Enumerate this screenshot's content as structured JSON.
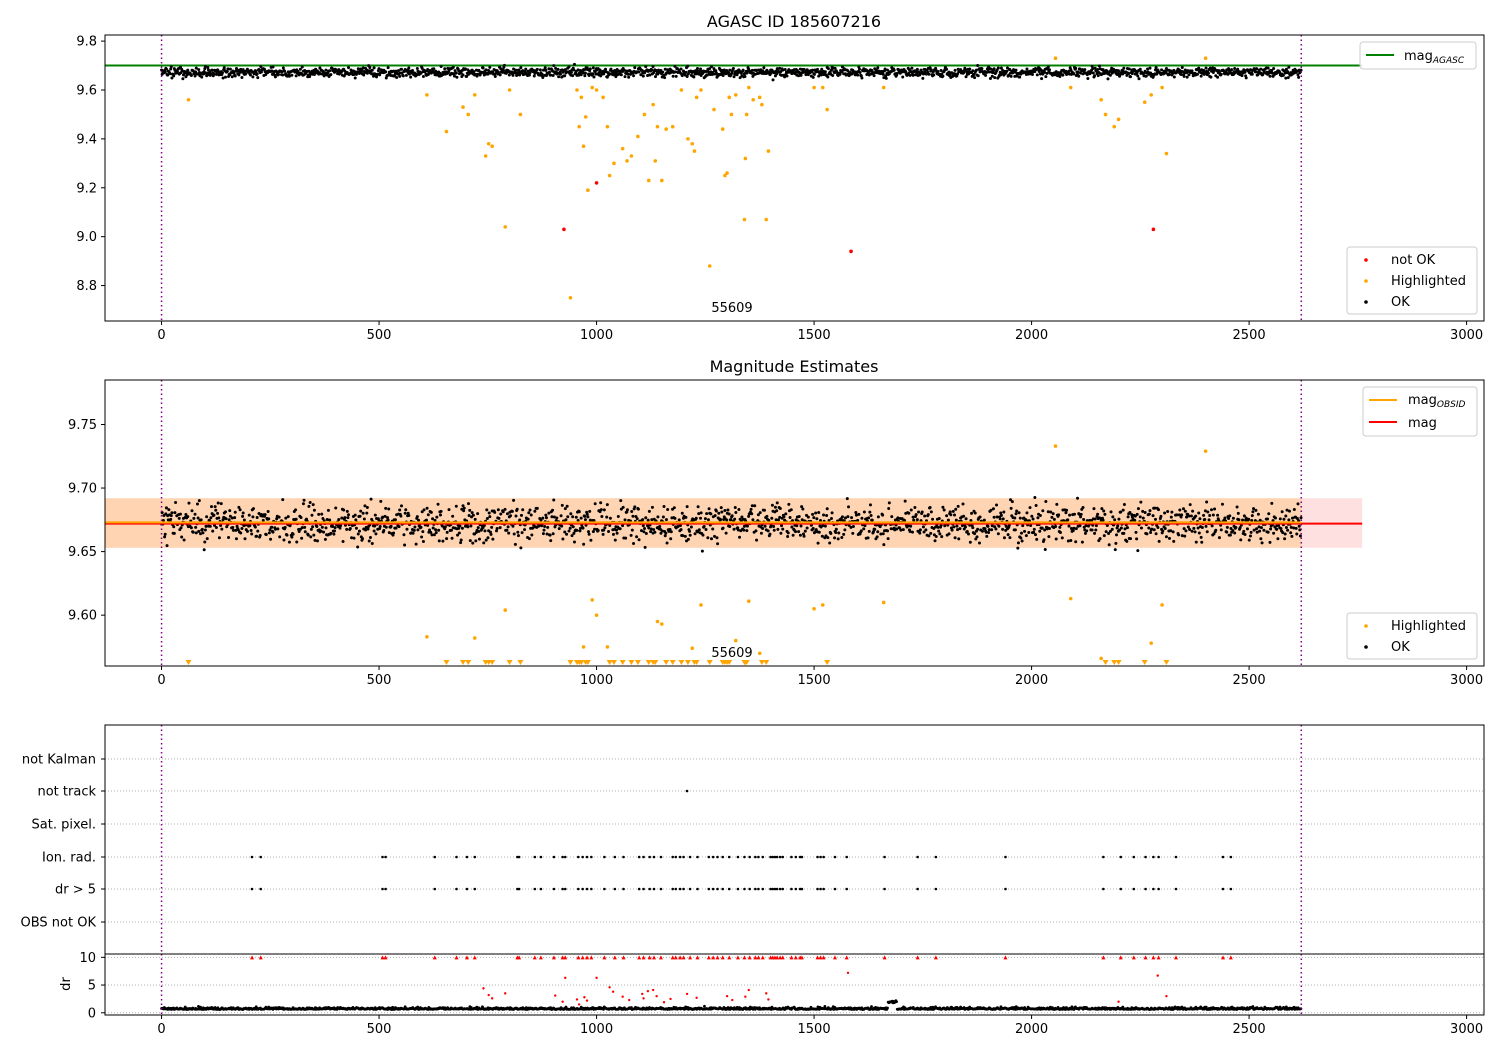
{
  "chart_data": [
    {
      "type": "scatter",
      "title": "AGASC ID 185607216",
      "xlim": [
        -130,
        3040
      ],
      "ylim": [
        8.655,
        9.825
      ],
      "xticks": [
        0,
        500,
        1000,
        1500,
        2000,
        2500,
        3000
      ],
      "yticks": [
        8.8,
        9.0,
        9.2,
        9.4,
        9.6,
        9.8
      ],
      "vlines": [
        0,
        2620
      ],
      "hline": {
        "name": "mag_AGASC",
        "label_main": "mag",
        "label_sub": "AGASC",
        "y": 9.7,
        "x": [
          -130,
          2760
        ],
        "color": "#008000"
      },
      "annotation": {
        "text": "55609",
        "x": 1310,
        "y": 8.7
      },
      "ok_band": {
        "center": 9.672,
        "spread": 0.02
      },
      "legend_top": [
        {
          "name": "mag_AGASC",
          "main": "mag",
          "sub": "AGASC",
          "color": "#008000"
        }
      ],
      "legend_bottom": [
        {
          "name": "not OK",
          "color": "#ff0000"
        },
        {
          "name": "Highlighted",
          "color": "#ffa500"
        },
        {
          "name": "OK",
          "color": "#000000"
        }
      ],
      "series": [
        {
          "name": "not OK",
          "color": "#ff0000",
          "points": [
            [
              925,
              9.03
            ],
            [
              1000,
              9.22
            ],
            [
              1585,
              8.94
            ],
            [
              2280,
              9.03
            ]
          ]
        },
        {
          "name": "Highlighted",
          "color": "#ffa500",
          "points": [
            [
              62,
              9.56
            ],
            [
              610,
              9.58
            ],
            [
              655,
              9.43
            ],
            [
              693,
              9.53
            ],
            [
              705,
              9.5
            ],
            [
              720,
              9.58
            ],
            [
              745,
              9.33
            ],
            [
              752,
              9.38
            ],
            [
              760,
              9.37
            ],
            [
              790,
              9.04
            ],
            [
              800,
              9.6
            ],
            [
              825,
              9.5
            ],
            [
              940,
              8.75
            ],
            [
              955,
              9.6
            ],
            [
              960,
              9.45
            ],
            [
              965,
              9.57
            ],
            [
              970,
              9.37
            ],
            [
              975,
              9.49
            ],
            [
              980,
              9.19
            ],
            [
              990,
              9.61
            ],
            [
              1000,
              9.6
            ],
            [
              1015,
              9.57
            ],
            [
              1025,
              9.45
            ],
            [
              1030,
              9.25
            ],
            [
              1040,
              9.3
            ],
            [
              1060,
              9.36
            ],
            [
              1070,
              9.31
            ],
            [
              1080,
              9.33
            ],
            [
              1095,
              9.41
            ],
            [
              1110,
              9.5
            ],
            [
              1120,
              9.23
            ],
            [
              1130,
              9.54
            ],
            [
              1135,
              9.31
            ],
            [
              1140,
              9.45
            ],
            [
              1150,
              9.23
            ],
            [
              1160,
              9.44
            ],
            [
              1175,
              9.45
            ],
            [
              1195,
              9.6
            ],
            [
              1210,
              9.4
            ],
            [
              1220,
              9.38
            ],
            [
              1225,
              9.35
            ],
            [
              1230,
              9.57
            ],
            [
              1240,
              9.6
            ],
            [
              1260,
              8.88
            ],
            [
              1270,
              9.52
            ],
            [
              1290,
              9.44
            ],
            [
              1295,
              9.25
            ],
            [
              1300,
              9.26
            ],
            [
              1305,
              9.57
            ],
            [
              1310,
              9.5
            ],
            [
              1320,
              9.58
            ],
            [
              1340,
              9.07
            ],
            [
              1342,
              9.32
            ],
            [
              1345,
              9.5
            ],
            [
              1350,
              9.61
            ],
            [
              1360,
              9.56
            ],
            [
              1375,
              9.57
            ],
            [
              1380,
              9.54
            ],
            [
              1390,
              9.07
            ],
            [
              1395,
              9.35
            ],
            [
              1500,
              9.61
            ],
            [
              1520,
              9.61
            ],
            [
              1530,
              9.52
            ],
            [
              1660,
              9.61
            ],
            [
              2055,
              9.73
            ],
            [
              2090,
              9.61
            ],
            [
              2160,
              9.56
            ],
            [
              2170,
              9.5
            ],
            [
              2190,
              9.45
            ],
            [
              2200,
              9.48
            ],
            [
              2260,
              9.55
            ],
            [
              2275,
              9.58
            ],
            [
              2300,
              9.61
            ],
            [
              2310,
              9.34
            ],
            [
              2400,
              9.73
            ]
          ]
        }
      ]
    },
    {
      "type": "scatter",
      "title": "Magnitude Estimates",
      "xlim": [
        -130,
        3040
      ],
      "ylim": [
        9.56,
        9.785
      ],
      "xticks": [
        0,
        500,
        1000,
        1500,
        2000,
        2500,
        3000
      ],
      "yticks": [
        9.6,
        9.65,
        9.7,
        9.75
      ],
      "ytick_labels": [
        "9.60",
        "9.65",
        "9.70",
        "9.75"
      ],
      "vlines": [
        0,
        2620
      ],
      "annotation": {
        "text": "55609",
        "x": 1310,
        "y": 9.57
      },
      "ok_band": {
        "center": 9.672,
        "spread": 0.014
      },
      "mag_line": {
        "name": "mag",
        "y": 9.672,
        "color": "#ff0000"
      },
      "mag_obsid": {
        "name": "mag_OBSID",
        "y": 9.673,
        "x": [
          -130,
          2620
        ],
        "color": "#ffa500"
      },
      "band": {
        "y": [
          9.653,
          9.692
        ],
        "x": [
          -130,
          2760
        ]
      },
      "legend_top": [
        {
          "name": "mag_OBSID",
          "main": "mag",
          "sub": "OBSID",
          "color": "#ffa500"
        },
        {
          "name": "mag",
          "main": "mag",
          "sub": "",
          "color": "#ff0000"
        }
      ],
      "legend_bottom": [
        {
          "name": "Highlighted",
          "color": "#ffa500"
        },
        {
          "name": "OK",
          "color": "#000000"
        }
      ],
      "series": [
        {
          "name": "Highlighted",
          "color": "#ffa500",
          "points": [
            [
              610,
              9.583
            ],
            [
              720,
              9.582
            ],
            [
              790,
              9.604
            ],
            [
              970,
              9.575
            ],
            [
              990,
              9.612
            ],
            [
              1000,
              9.6
            ],
            [
              1025,
              9.575
            ],
            [
              1140,
              9.595
            ],
            [
              1150,
              9.593
            ],
            [
              1220,
              9.574
            ],
            [
              1240,
              9.608
            ],
            [
              1320,
              9.58
            ],
            [
              1350,
              9.611
            ],
            [
              1375,
              9.57
            ],
            [
              1500,
              9.605
            ],
            [
              1520,
              9.608
            ],
            [
              1660,
              9.61
            ],
            [
              2055,
              9.733
            ],
            [
              2090,
              9.613
            ],
            [
              2160,
              9.566
            ],
            [
              2275,
              9.578
            ],
            [
              2300,
              9.608
            ],
            [
              2400,
              9.729
            ]
          ]
        },
        {
          "name": "Highlighted (below axis)",
          "color": "#ffa500",
          "marker": "triangle-down",
          "x": [
            62,
            655,
            693,
            705,
            745,
            752,
            760,
            800,
            825,
            940,
            955,
            960,
            965,
            975,
            980,
            1030,
            1040,
            1060,
            1080,
            1095,
            1120,
            1130,
            1135,
            1160,
            1175,
            1195,
            1210,
            1225,
            1230,
            1260,
            1290,
            1295,
            1300,
            1305,
            1340,
            1342,
            1345,
            1380,
            1390,
            1530,
            2170,
            2190,
            2200,
            2260,
            2310
          ]
        }
      ]
    },
    {
      "type": "scatter",
      "title": "",
      "xlim": [
        -130,
        3040
      ],
      "xticks": [
        0,
        500,
        1000,
        1500,
        2000,
        2500,
        3000
      ],
      "vlines": [
        0,
        2620
      ],
      "categories": [
        "not Kalman",
        "not track",
        "Sat. pixel.",
        "Ion. rad.",
        "dr > 5",
        "OBS not OK"
      ],
      "flags": {
        "not track": [
          1208
        ],
        "Ion. rad.": [
          208,
          228,
          508,
          515,
          628,
          678,
          702,
          720,
          818,
          822,
          858,
          872,
          902,
          922,
          928,
          958,
          968,
          978,
          988,
          1018,
          1042,
          1062,
          1098,
          1108,
          1122,
          1132,
          1148,
          1175,
          1182,
          1192,
          1200,
          1215,
          1232,
          1258,
          1268,
          1278,
          1290,
          1305,
          1325,
          1340,
          1352,
          1365,
          1372,
          1382,
          1400,
          1405,
          1410,
          1415,
          1422,
          1428,
          1448,
          1458,
          1468,
          1472,
          1508,
          1515,
          1522,
          1548,
          1575,
          1662,
          1738,
          1780,
          1940,
          2165,
          2205,
          2235,
          2262,
          2280,
          2292,
          2332,
          2440,
          2458
        ]
      }
    },
    {
      "type": "scatter",
      "title": "",
      "ylabel": "dr",
      "xlim": [
        -130,
        3040
      ],
      "ylim": [
        -0.4,
        10.6
      ],
      "xticks": [
        0,
        500,
        1000,
        1500,
        2000,
        2500,
        3000
      ],
      "yticks": [
        0,
        5,
        10
      ],
      "vlines": [
        0,
        2620
      ],
      "capped_value": 10,
      "baseline": {
        "level": 0.6,
        "spread": 0.25
      },
      "mid_points": [
        [
          740,
          4.4
        ],
        [
          752,
          3.2
        ],
        [
          760,
          2.6
        ],
        [
          790,
          3.5
        ],
        [
          905,
          3.1
        ],
        [
          922,
          2.0
        ],
        [
          928,
          6.3
        ],
        [
          955,
          2.4
        ],
        [
          960,
          1.5
        ],
        [
          972,
          2.8
        ],
        [
          978,
          2.2
        ],
        [
          1000,
          6.3
        ],
        [
          1030,
          4.6
        ],
        [
          1038,
          3.8
        ],
        [
          1060,
          2.9
        ],
        [
          1075,
          2.3
        ],
        [
          1105,
          3.4
        ],
        [
          1108,
          2.6
        ],
        [
          1118,
          3.9
        ],
        [
          1130,
          4.1
        ],
        [
          1138,
          3.0
        ],
        [
          1155,
          1.9
        ],
        [
          1170,
          2.5
        ],
        [
          1208,
          3.4
        ],
        [
          1230,
          2.7
        ],
        [
          1300,
          3.0
        ],
        [
          1312,
          2.3
        ],
        [
          1342,
          2.9
        ],
        [
          1350,
          4.1
        ],
        [
          1390,
          3.5
        ],
        [
          1395,
          2.4
        ],
        [
          1578,
          7.2
        ],
        [
          2200,
          2.0
        ],
        [
          2290,
          6.7
        ],
        [
          2310,
          3.0
        ]
      ]
    }
  ]
}
